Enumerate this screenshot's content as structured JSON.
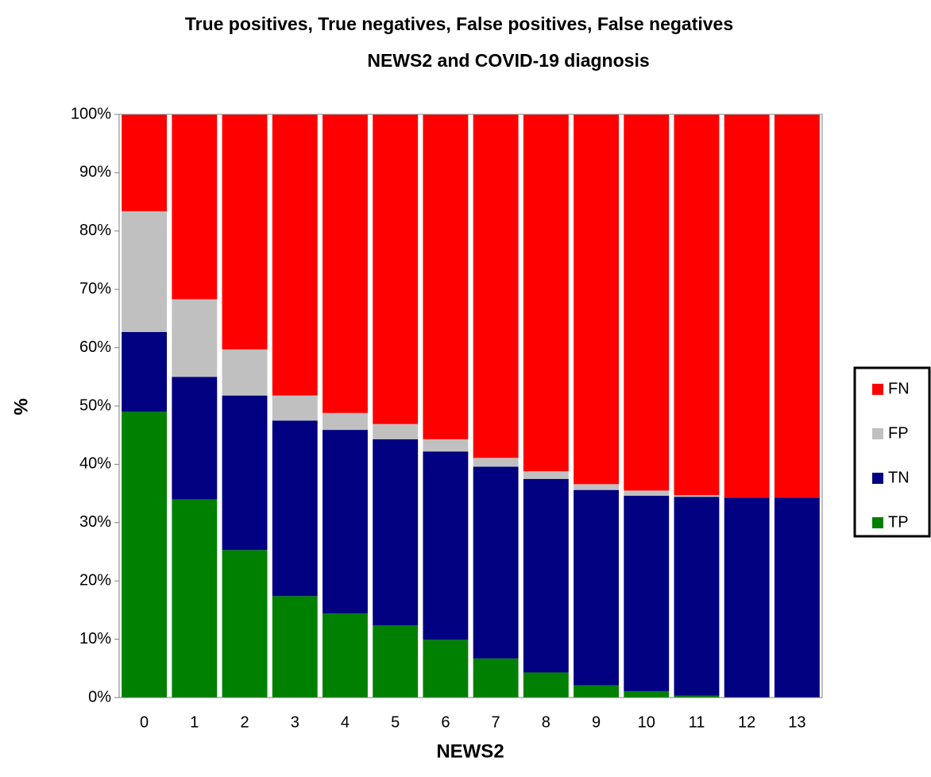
{
  "chart_data": {
    "type": "stacked_bar",
    "title": "True positives, True negatives, False positives, False negatives",
    "subtitle": "NEWS2 and COVID-19 diagnosis",
    "x_label": "NEWS2",
    "y_label": "%",
    "categories": [
      "0",
      "1",
      "2",
      "3",
      "4",
      "5",
      "6",
      "7",
      "8",
      "9",
      "10",
      "11",
      "12",
      "13"
    ],
    "series": [
      {
        "name": "TP",
        "color": "#008000",
        "values": [
          49.0,
          34.0,
          25.3,
          17.4,
          14.4,
          12.4,
          9.9,
          6.7,
          4.3,
          2.1,
          1.1,
          0.3,
          0,
          0
        ]
      },
      {
        "name": "TN",
        "color": "#000080",
        "values": [
          13.7,
          21.0,
          26.5,
          30.1,
          31.5,
          31.9,
          32.3,
          32.9,
          33.2,
          33.5,
          33.5,
          34.1,
          34.3,
          34.3
        ]
      },
      {
        "name": "FP",
        "color": "#c0c0c0",
        "values": [
          20.7,
          13.3,
          7.9,
          4.3,
          2.9,
          2.6,
          2.1,
          1.5,
          1.3,
          1.0,
          0.9,
          0.3,
          0,
          0
        ]
      },
      {
        "name": "FN",
        "color": "#ff0000",
        "values": [
          16.6,
          31.7,
          40.3,
          48.2,
          51.2,
          53.1,
          55.7,
          58.9,
          61.2,
          63.4,
          64.5,
          65.3,
          65.7,
          65.7
        ]
      }
    ],
    "ylim": [
      0,
      100
    ],
    "yticks": [
      {
        "value": 0,
        "label": "0%"
      },
      {
        "value": 10,
        "label": "10%"
      },
      {
        "value": 20,
        "label": "20%"
      },
      {
        "value": 30,
        "label": "30%"
      },
      {
        "value": 40,
        "label": "40%"
      },
      {
        "value": 50,
        "label": "50%"
      },
      {
        "value": 60,
        "label": "60%"
      },
      {
        "value": 70,
        "label": "70%"
      },
      {
        "value": 80,
        "label": "80%"
      },
      {
        "value": 90,
        "label": "90%"
      },
      {
        "value": 100,
        "label": "100%"
      }
    ],
    "legend": "right"
  }
}
